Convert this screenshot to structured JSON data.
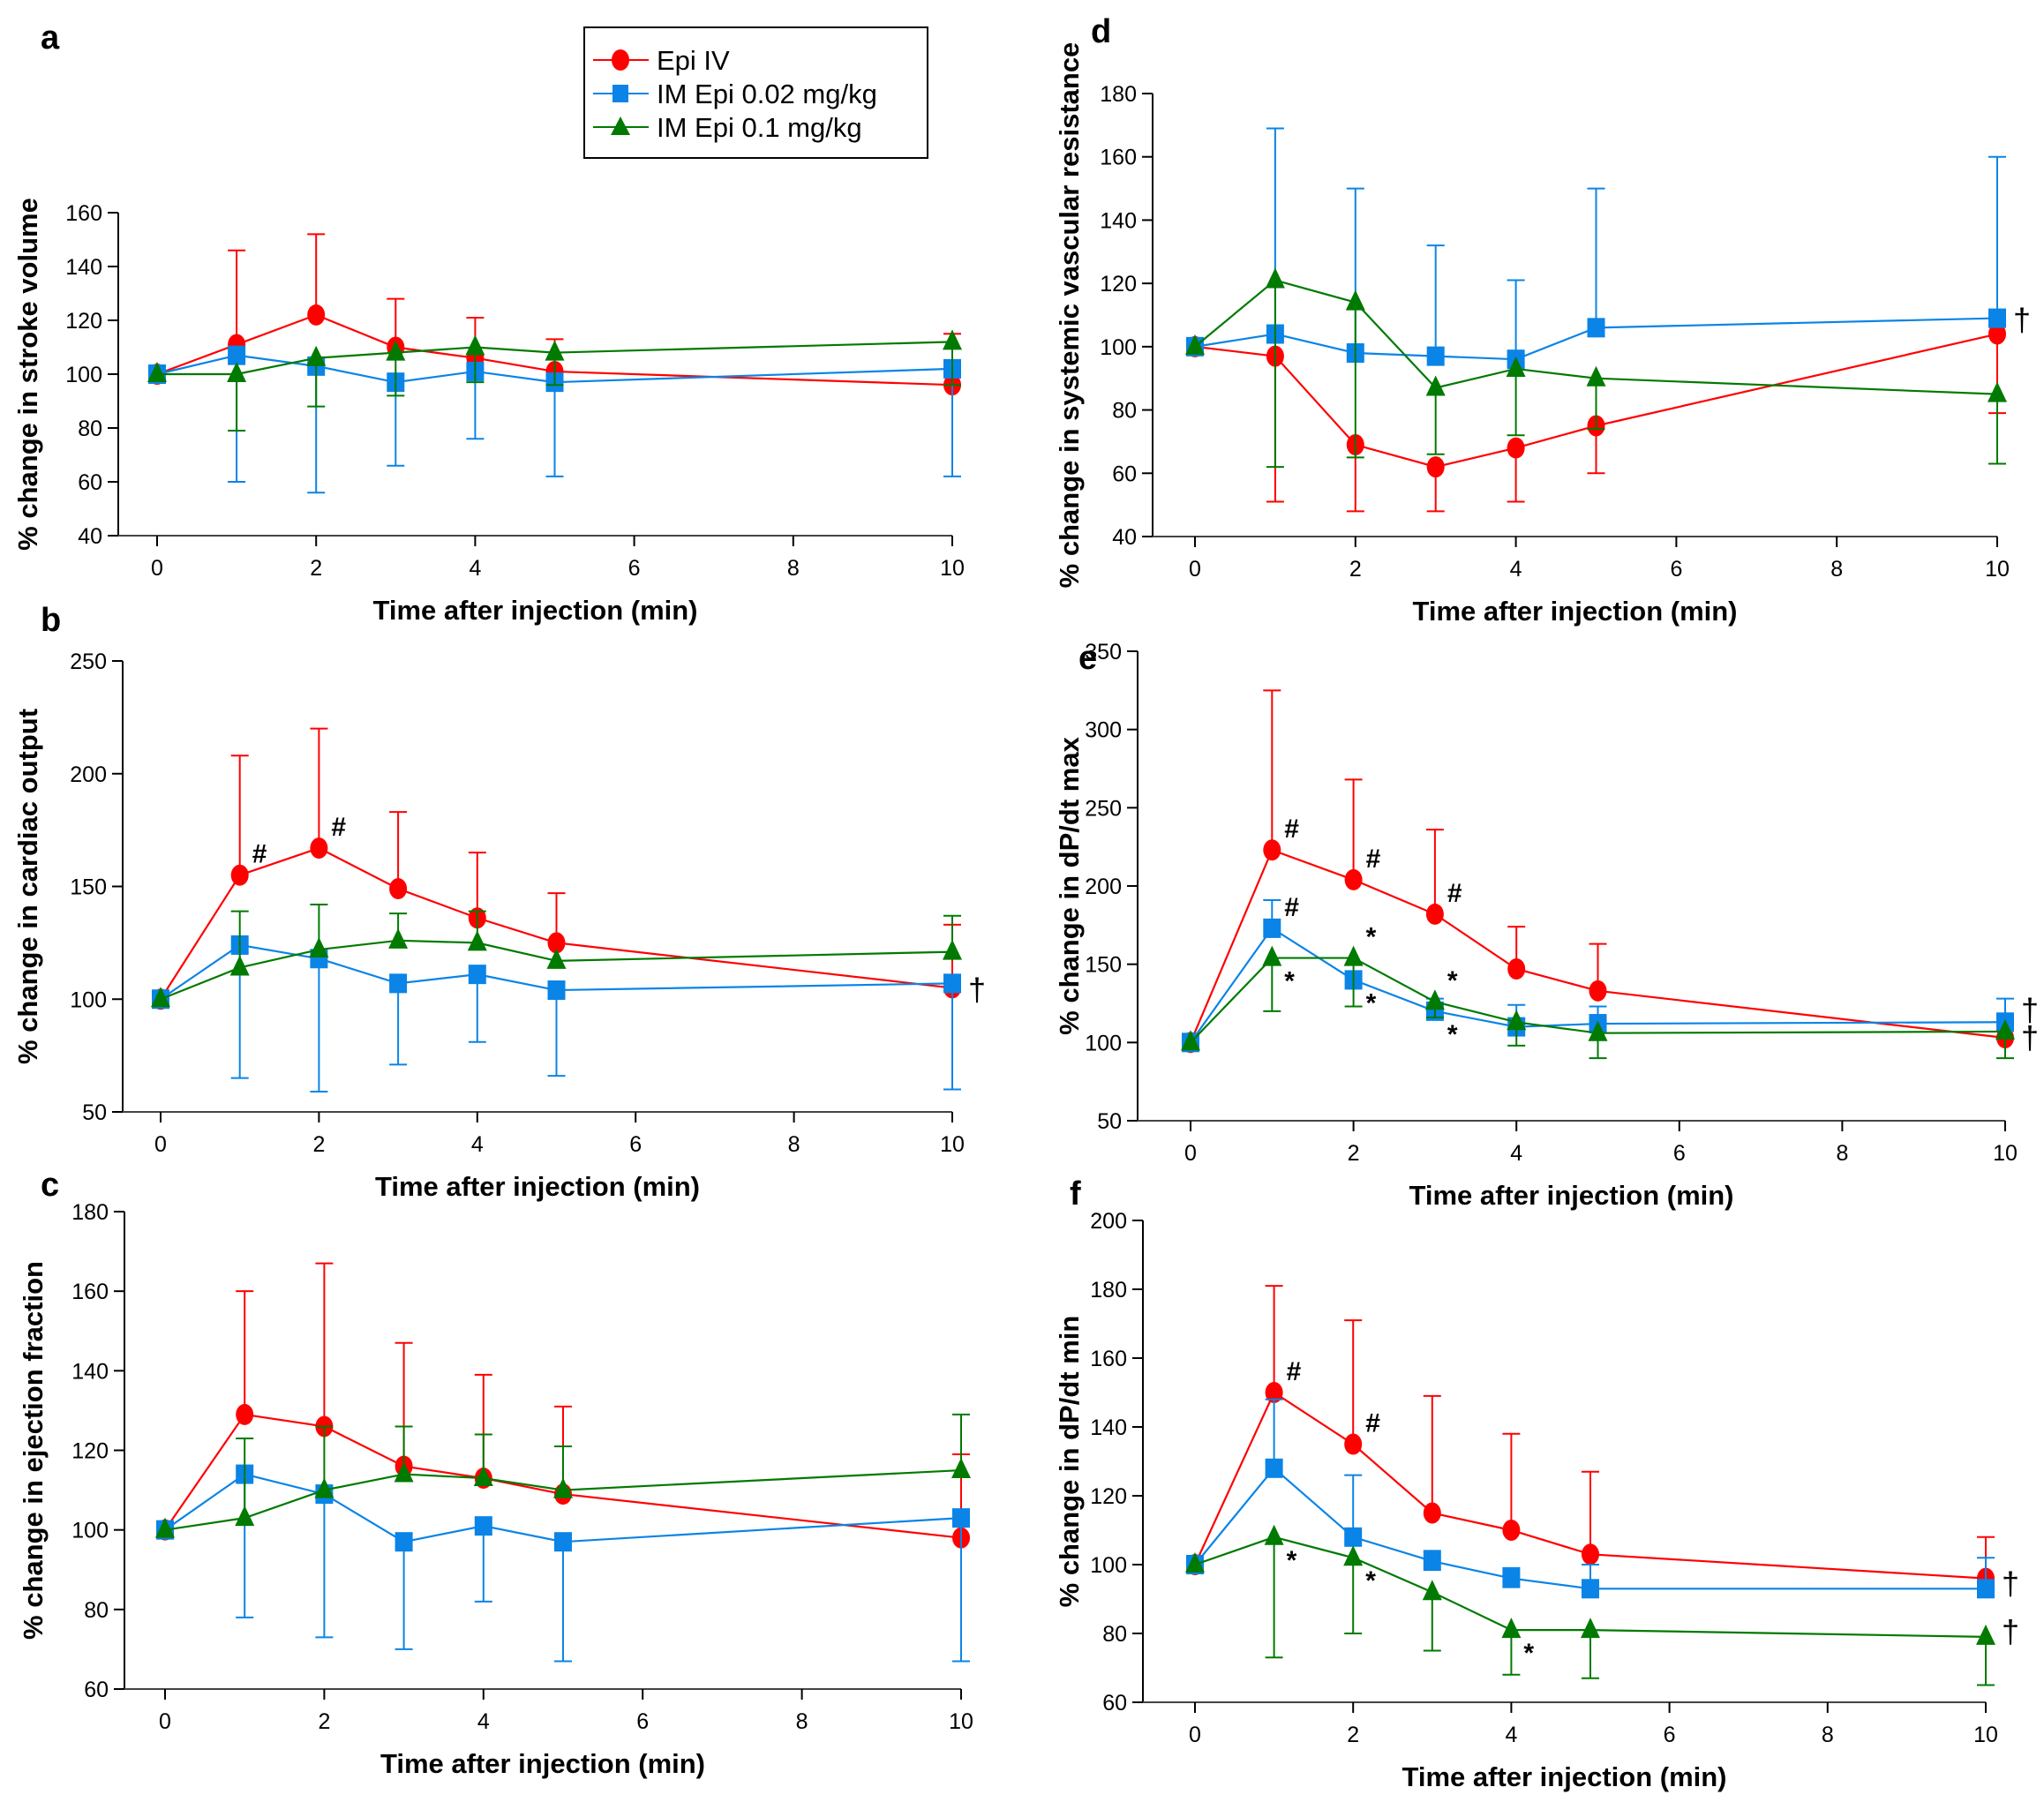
{
  "legend": {
    "entries": [
      {
        "label": "Epi IV",
        "color": "#ff0000",
        "marker": "circle"
      },
      {
        "label": "IM Epi 0.02 mg/kg",
        "color": "#0a84e6",
        "marker": "square"
      },
      {
        "label": "IM Epi 0.1 mg/kg",
        "color": "#007a00",
        "marker": "triangle"
      }
    ]
  },
  "chart_data": [
    {
      "id": "a",
      "panel_label": "a",
      "type": "line",
      "title": "",
      "xlabel": "Time after injection (min)",
      "ylabel": "% change in stroke volume",
      "xlim": [
        0,
        10
      ],
      "ylim": [
        40,
        160
      ],
      "xticks": [
        0,
        2,
        4,
        6,
        8,
        10
      ],
      "yticks": [
        40,
        60,
        80,
        100,
        120,
        140,
        160
      ],
      "x": [
        0,
        1,
        2,
        3,
        4,
        5,
        10
      ],
      "series": [
        {
          "name": "Epi IV",
          "values": [
            100,
            111,
            122,
            110,
            106,
            101,
            96
          ],
          "err_upper": [
            null,
            146,
            152,
            128,
            121,
            113,
            115
          ],
          "err_lower": [
            null,
            null,
            null,
            null,
            null,
            null,
            null
          ]
        },
        {
          "name": "IM Epi 0.02 mg/kg",
          "values": [
            100,
            107,
            103,
            97,
            101,
            97,
            102
          ],
          "err_upper": [
            null,
            null,
            null,
            null,
            null,
            null,
            null
          ],
          "err_lower": [
            null,
            60,
            56,
            66,
            76,
            62,
            62
          ]
        },
        {
          "name": "IM Epi 0.1 mg/kg",
          "values": [
            100,
            100,
            106,
            108,
            110,
            108,
            112
          ],
          "err_upper": [
            null,
            null,
            null,
            null,
            null,
            null,
            null
          ],
          "err_lower": [
            null,
            79,
            88,
            92,
            97,
            96,
            96
          ]
        }
      ],
      "annotations": [],
      "legend": "top-right"
    },
    {
      "id": "b",
      "panel_label": "b",
      "type": "line",
      "title": "",
      "xlabel": "Time after injection (min)",
      "ylabel": "% change in cardiac output",
      "xlim": [
        0,
        10
      ],
      "ylim": [
        50,
        250
      ],
      "xticks": [
        0,
        2,
        4,
        6,
        8,
        10
      ],
      "yticks": [
        50,
        100,
        150,
        200,
        250
      ],
      "x": [
        0,
        1,
        2,
        3,
        4,
        5,
        10
      ],
      "series": [
        {
          "name": "Epi IV",
          "values": [
            100,
            155,
            167,
            149,
            136,
            125,
            105
          ],
          "err_upper": [
            null,
            208,
            220,
            183,
            165,
            147,
            133
          ],
          "err_lower": [
            null,
            null,
            null,
            null,
            null,
            null,
            null
          ]
        },
        {
          "name": "IM Epi 0.02 mg/kg",
          "values": [
            100,
            124,
            118,
            107,
            111,
            104,
            107
          ],
          "err_upper": [
            null,
            null,
            null,
            null,
            null,
            null,
            null
          ],
          "err_lower": [
            null,
            65,
            59,
            71,
            81,
            66,
            60
          ]
        },
        {
          "name": "IM Epi 0.1 mg/kg",
          "values": [
            100,
            114,
            122,
            126,
            125,
            117,
            121
          ],
          "err_upper": [
            null,
            139,
            142,
            138,
            139,
            null,
            137
          ],
          "err_lower": [
            null,
            null,
            null,
            null,
            null,
            null,
            null
          ]
        }
      ],
      "annotations": [
        {
          "text": "#",
          "x": 1,
          "y": 155,
          "pos": "upper-right"
        },
        {
          "text": "#",
          "x": 2,
          "y": 167,
          "pos": "upper-right"
        },
        {
          "text": "†",
          "x": 10,
          "y": 105,
          "pos": "right"
        }
      ]
    },
    {
      "id": "c",
      "panel_label": "c",
      "type": "line",
      "title": "",
      "xlabel": "Time after injection (min)",
      "ylabel": "% change in ejection fraction",
      "xlim": [
        0,
        10
      ],
      "ylim": [
        60,
        180
      ],
      "xticks": [
        0,
        2,
        4,
        6,
        8,
        10
      ],
      "yticks": [
        60,
        80,
        100,
        120,
        140,
        160,
        180
      ],
      "x": [
        0,
        1,
        2,
        3,
        4,
        5,
        10
      ],
      "series": [
        {
          "name": "Epi IV",
          "values": [
            100,
            129,
            126,
            116,
            113,
            109,
            98
          ],
          "err_upper": [
            null,
            160,
            167,
            147,
            139,
            131,
            119
          ],
          "err_lower": [
            null,
            null,
            null,
            null,
            null,
            null,
            null
          ]
        },
        {
          "name": "IM Epi 0.02 mg/kg",
          "values": [
            100,
            114,
            109,
            97,
            101,
            97,
            103
          ],
          "err_upper": [
            null,
            null,
            null,
            null,
            null,
            null,
            null
          ],
          "err_lower": [
            null,
            78,
            73,
            70,
            82,
            67,
            67
          ]
        },
        {
          "name": "IM Epi 0.1 mg/kg",
          "values": [
            100,
            103,
            110,
            114,
            113,
            110,
            115
          ],
          "err_upper": [
            null,
            123,
            126,
            126,
            124,
            121,
            129
          ],
          "err_lower": [
            null,
            null,
            null,
            null,
            null,
            null,
            null
          ]
        }
      ],
      "annotations": []
    },
    {
      "id": "d",
      "panel_label": "d",
      "type": "line",
      "title": "",
      "xlabel": "Time after injection (min)",
      "ylabel": "% change in systemic vascular resistance",
      "xlim": [
        0,
        10
      ],
      "ylim": [
        40,
        180
      ],
      "xticks": [
        0,
        2,
        4,
        6,
        8,
        10
      ],
      "yticks": [
        40,
        60,
        80,
        100,
        120,
        140,
        160,
        180
      ],
      "x": [
        0,
        1,
        2,
        3,
        4,
        5,
        10
      ],
      "series": [
        {
          "name": "Epi IV",
          "values": [
            100,
            97,
            69,
            62,
            68,
            75,
            104
          ],
          "err_upper": [
            null,
            null,
            null,
            null,
            null,
            null,
            null
          ],
          "err_lower": [
            null,
            51,
            48,
            48,
            51,
            60,
            79
          ]
        },
        {
          "name": "IM Epi 0.02 mg/kg",
          "values": [
            100,
            104,
            98,
            97,
            96,
            106,
            109
          ],
          "err_upper": [
            null,
            169,
            150,
            132,
            121,
            150,
            160
          ],
          "err_lower": [
            null,
            null,
            null,
            null,
            null,
            null,
            null
          ]
        },
        {
          "name": "IM Epi 0.1 mg/kg",
          "values": [
            100,
            121,
            114,
            87,
            93,
            90,
            85
          ],
          "err_upper": [
            null,
            null,
            null,
            null,
            null,
            null,
            null
          ],
          "err_lower": [
            null,
            62,
            65,
            66,
            72,
            74,
            63
          ]
        }
      ],
      "annotations": [
        {
          "text": "†",
          "x": 10,
          "y": 109,
          "pos": "right"
        }
      ]
    },
    {
      "id": "e",
      "panel_label": "e",
      "type": "line",
      "title": "",
      "xlabel": "Time after injection (min)",
      "ylabel": "% change in dP/dt max",
      "xlim": [
        0,
        10
      ],
      "ylim": [
        50,
        350
      ],
      "xticks": [
        0,
        2,
        4,
        6,
        8,
        10
      ],
      "yticks": [
        50,
        100,
        150,
        200,
        250,
        300,
        350
      ],
      "x": [
        0,
        1,
        2,
        3,
        4,
        5,
        10
      ],
      "series": [
        {
          "name": "Epi IV",
          "values": [
            100,
            223,
            204,
            182,
            147,
            133,
            103
          ],
          "err_upper": [
            null,
            325,
            268,
            236,
            174,
            163,
            null
          ],
          "err_lower": [
            null,
            null,
            null,
            null,
            null,
            null,
            null
          ]
        },
        {
          "name": "IM Epi 0.02 mg/kg",
          "values": [
            100,
            173,
            140,
            120,
            110,
            112,
            113
          ],
          "err_upper": [
            null,
            191,
            null,
            128,
            124,
            123,
            128
          ],
          "err_lower": [
            null,
            null,
            null,
            null,
            null,
            null,
            null
          ]
        },
        {
          "name": "IM Epi 0.1 mg/kg",
          "values": [
            100,
            154,
            154,
            126,
            113,
            106,
            107
          ],
          "err_upper": [
            null,
            null,
            null,
            null,
            null,
            null,
            null
          ],
          "err_lower": [
            null,
            120,
            123,
            116,
            98,
            90,
            90
          ]
        }
      ],
      "annotations": [
        {
          "text": "#",
          "x": 1,
          "y": 223,
          "pos": "upper-right"
        },
        {
          "text": "#",
          "x": 2,
          "y": 204,
          "pos": "upper-right"
        },
        {
          "text": "#",
          "x": 3,
          "y": 182,
          "pos": "upper-right"
        },
        {
          "text": "#",
          "x": 1,
          "y": 173,
          "pos": "upper-right"
        },
        {
          "text": "*",
          "x": 1,
          "y": 154,
          "pos": "lower-right"
        },
        {
          "text": "*",
          "x": 2,
          "y": 154,
          "pos": "upper-right"
        },
        {
          "text": "*",
          "x": 2,
          "y": 140,
          "pos": "lower-right"
        },
        {
          "text": "*",
          "x": 3,
          "y": 126,
          "pos": "upper-right"
        },
        {
          "text": "*",
          "x": 3,
          "y": 120,
          "pos": "lower-right"
        },
        {
          "text": "†",
          "x": 10,
          "y": 122,
          "pos": "right"
        },
        {
          "text": "†",
          "x": 10,
          "y": 104,
          "pos": "right"
        }
      ]
    },
    {
      "id": "f",
      "panel_label": "f",
      "type": "line",
      "title": "",
      "xlabel": "Time after injection (min)",
      "ylabel": "% change in dP/dt min",
      "xlim": [
        0,
        10
      ],
      "ylim": [
        60,
        200
      ],
      "xticks": [
        0,
        2,
        4,
        6,
        8,
        10
      ],
      "yticks": [
        60,
        80,
        100,
        120,
        140,
        160,
        180,
        200
      ],
      "x": [
        0,
        1,
        2,
        3,
        4,
        5,
        10
      ],
      "series": [
        {
          "name": "Epi IV",
          "values": [
            100,
            150,
            135,
            115,
            110,
            103,
            96
          ],
          "err_upper": [
            null,
            181,
            171,
            149,
            138,
            127,
            108
          ],
          "err_lower": [
            null,
            null,
            null,
            null,
            null,
            null,
            null
          ]
        },
        {
          "name": "IM Epi 0.02 mg/kg",
          "values": [
            100,
            128,
            108,
            101,
            96,
            93,
            93
          ],
          "err_upper": [
            null,
            148,
            126,
            104,
            99,
            100,
            102
          ],
          "err_lower": [
            null,
            null,
            null,
            null,
            null,
            null,
            null
          ]
        },
        {
          "name": "IM Epi 0.1 mg/kg",
          "values": [
            100,
            108,
            102,
            92,
            81,
            81,
            79
          ],
          "err_upper": [
            null,
            null,
            null,
            null,
            null,
            null,
            null
          ],
          "err_lower": [
            null,
            73,
            80,
            75,
            68,
            67,
            65
          ]
        }
      ],
      "annotations": [
        {
          "text": "#",
          "x": 1,
          "y": 150,
          "pos": "upper-right"
        },
        {
          "text": "#",
          "x": 2,
          "y": 135,
          "pos": "upper-right"
        },
        {
          "text": "*",
          "x": 1,
          "y": 108,
          "pos": "lower-right"
        },
        {
          "text": "*",
          "x": 2,
          "y": 102,
          "pos": "lower-right"
        },
        {
          "text": "*",
          "x": 4,
          "y": 81,
          "pos": "lower-right"
        },
        {
          "text": "†",
          "x": 10,
          "y": 95,
          "pos": "right"
        },
        {
          "text": "†",
          "x": 10,
          "y": 81,
          "pos": "right"
        }
      ]
    }
  ]
}
